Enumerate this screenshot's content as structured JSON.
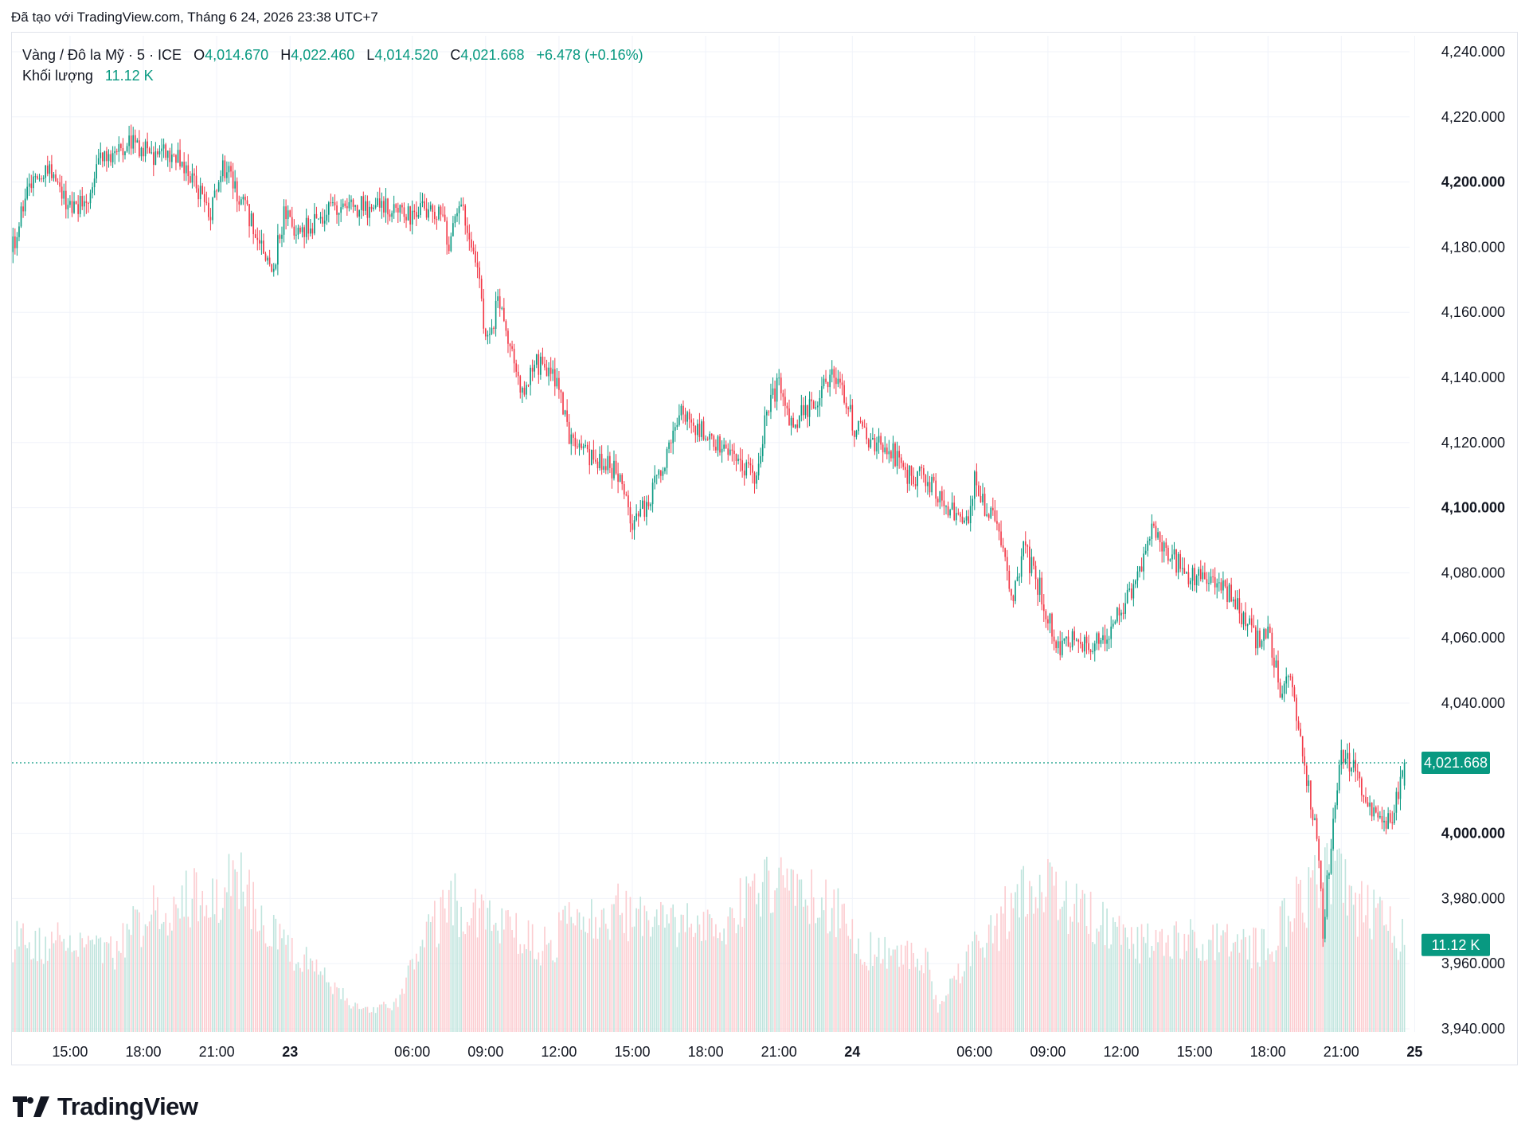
{
  "caption": "Đã tạo với TradingView.com, Tháng 6 24, 2026 23:38 UTC+7",
  "legend": {
    "symbol": "Vàng / Đô la Mỹ · 5 · ICE",
    "open_label": "O",
    "open": "4,014.670",
    "high_label": "H",
    "high": "4,022.460",
    "low_label": "L",
    "low": "4,014.520",
    "close_label": "C",
    "close": "4,021.668",
    "change": "+6.478 (+0.16%)",
    "volume_label": "Khối lượng",
    "volume": "11.12 K"
  },
  "brand": {
    "name": "TradingView",
    "logo_icon": "tradingview-logo-icon"
  },
  "colors": {
    "up": "#089981",
    "down": "#f23645",
    "up_volume": "#bfe4dd",
    "down_volume": "#fcccd0",
    "grid": "#f0f3fa",
    "text": "#131722"
  },
  "chart_data": {
    "type": "candlestick",
    "interval_minutes": 5,
    "ylim": [
      3940,
      4240
    ],
    "y_ticks": [
      {
        "value": 4240,
        "label": "4,240.000",
        "bold": false
      },
      {
        "value": 4220,
        "label": "4,220.000",
        "bold": false
      },
      {
        "value": 4200,
        "label": "4,200.000",
        "bold": true
      },
      {
        "value": 4180,
        "label": "4,180.000",
        "bold": false
      },
      {
        "value": 4160,
        "label": "4,160.000",
        "bold": false
      },
      {
        "value": 4140,
        "label": "4,140.000",
        "bold": false
      },
      {
        "value": 4120,
        "label": "4,120.000",
        "bold": false
      },
      {
        "value": 4100,
        "label": "4,100.000",
        "bold": true
      },
      {
        "value": 4080,
        "label": "4,080.000",
        "bold": false
      },
      {
        "value": 4060,
        "label": "4,060.000",
        "bold": false
      },
      {
        "value": 4040,
        "label": "4,040.000",
        "bold": false
      },
      {
        "value": 4000,
        "label": "4,000.000",
        "bold": true
      },
      {
        "value": 3980,
        "label": "3,980.000",
        "bold": false
      },
      {
        "value": 3960,
        "label": "3,960.000",
        "bold": false
      },
      {
        "value": 3940,
        "label": "3,940.000",
        "bold": false
      }
    ],
    "x_ticks": [
      {
        "time": "22 15:00",
        "label": "15:00",
        "bold": false
      },
      {
        "time": "22 18:00",
        "label": "18:00",
        "bold": false
      },
      {
        "time": "22 21:00",
        "label": "21:00",
        "bold": false
      },
      {
        "time": "23 00:00",
        "label": "23",
        "bold": true
      },
      {
        "time": "23 06:00",
        "label": "06:00",
        "bold": false
      },
      {
        "time": "23 09:00",
        "label": "09:00",
        "bold": false
      },
      {
        "time": "23 12:00",
        "label": "12:00",
        "bold": false
      },
      {
        "time": "23 15:00",
        "label": "15:00",
        "bold": false
      },
      {
        "time": "23 18:00",
        "label": "18:00",
        "bold": false
      },
      {
        "time": "23 21:00",
        "label": "21:00",
        "bold": false
      },
      {
        "time": "24 00:00",
        "label": "24",
        "bold": true
      },
      {
        "time": "24 06:00",
        "label": "06:00",
        "bold": false
      },
      {
        "time": "24 09:00",
        "label": "09:00",
        "bold": false
      },
      {
        "time": "24 12:00",
        "label": "12:00",
        "bold": false
      },
      {
        "time": "24 15:00",
        "label": "15:00",
        "bold": false
      },
      {
        "time": "24 18:00",
        "label": "18:00",
        "bold": false
      },
      {
        "time": "24 21:00",
        "label": "21:00",
        "bold": false
      },
      {
        "time": "25 00:00",
        "label": "25",
        "bold": true
      }
    ],
    "start_time": "22 12:40",
    "end_time": "24 23:35",
    "session_gaps": [
      [
        "23 00:00",
        "23 01:00"
      ],
      [
        "24 00:00",
        "24 01:00"
      ]
    ],
    "close_path": [
      [
        "22 12:40",
        4180
      ],
      [
        "22 13:10",
        4195
      ],
      [
        "22 14:00",
        4205
      ],
      [
        "22 14:40",
        4195
      ],
      [
        "22 15:30",
        4192
      ],
      [
        "22 16:00",
        4200
      ],
      [
        "22 16:15",
        4208
      ],
      [
        "22 17:30",
        4212
      ],
      [
        "22 18:30",
        4207
      ],
      [
        "22 19:00",
        4210
      ],
      [
        "22 19:45",
        4205
      ],
      [
        "22 20:45",
        4190
      ],
      [
        "22 21:15",
        4205
      ],
      [
        "22 22:00",
        4195
      ],
      [
        "22 22:45",
        4182
      ],
      [
        "22 23:15",
        4172
      ],
      [
        "22 23:45",
        4190
      ],
      [
        "23 01:30",
        4185
      ],
      [
        "23 03:00",
        4193
      ],
      [
        "23 04:30",
        4192
      ],
      [
        "23 06:00",
        4190
      ],
      [
        "23 07:00",
        4192
      ],
      [
        "23 07:30",
        4182
      ],
      [
        "23 08:00",
        4195
      ],
      [
        "23 08:40",
        4175
      ],
      [
        "23 09:00",
        4150
      ],
      [
        "23 09:30",
        4162
      ],
      [
        "23 10:00",
        4150
      ],
      [
        "23 10:30",
        4135
      ],
      [
        "23 11:00",
        4145
      ],
      [
        "23 12:00",
        4138
      ],
      [
        "23 12:30",
        4120
      ],
      [
        "23 13:30",
        4115
      ],
      [
        "23 14:30",
        4110
      ],
      [
        "23 15:00",
        4093
      ],
      [
        "23 16:00",
        4108
      ],
      [
        "23 17:00",
        4130
      ],
      [
        "23 18:00",
        4122
      ],
      [
        "23 19:00",
        4118
      ],
      [
        "23 20:00",
        4110
      ],
      [
        "23 20:30",
        4128
      ],
      [
        "23 21:00",
        4140
      ],
      [
        "23 21:30",
        4125
      ],
      [
        "23 22:30",
        4133
      ],
      [
        "23 23:15",
        4140
      ],
      [
        "23 23:45",
        4132
      ],
      [
        "24 01:30",
        4122
      ],
      [
        "24 02:30",
        4118
      ],
      [
        "24 03:30",
        4108
      ],
      [
        "24 04:00",
        4110
      ],
      [
        "24 04:45",
        4100
      ],
      [
        "24 05:45",
        4095
      ],
      [
        "24 06:00",
        4110
      ],
      [
        "24 06:30",
        4098
      ],
      [
        "24 07:00",
        4095
      ],
      [
        "24 07:30",
        4070
      ],
      [
        "24 08:00",
        4088
      ],
      [
        "24 08:40",
        4075
      ],
      [
        "24 09:30",
        4055
      ],
      [
        "24 10:00",
        4060
      ],
      [
        "24 11:00",
        4058
      ],
      [
        "24 12:00",
        4068
      ],
      [
        "24 12:45",
        4080
      ],
      [
        "24 13:15",
        4092
      ],
      [
        "24 14:00",
        4085
      ],
      [
        "24 15:00",
        4078
      ],
      [
        "24 16:00",
        4078
      ],
      [
        "24 16:30",
        4072
      ],
      [
        "24 17:30",
        4060
      ],
      [
        "24 18:00",
        4062
      ],
      [
        "24 18:30",
        4045
      ],
      [
        "24 19:00",
        4045
      ],
      [
        "24 19:30",
        4020
      ],
      [
        "24 20:00",
        4000
      ],
      [
        "24 20:15",
        3970
      ],
      [
        "24 20:40",
        4005
      ],
      [
        "24 21:00",
        4025
      ],
      [
        "24 21:30",
        4020
      ],
      [
        "24 22:00",
        4008
      ],
      [
        "24 22:30",
        4005
      ],
      [
        "24 23:00",
        4003
      ],
      [
        "24 23:35",
        4021.668
      ]
    ],
    "last_price": 4021.668,
    "last_price_label": "4,021.668",
    "last_volume_label": "11.12 K",
    "volume_scale_max_k": 28,
    "volume_path_k": [
      [
        "22 12:40",
        12
      ],
      [
        "22 17:00",
        11
      ],
      [
        "22 18:00",
        15
      ],
      [
        "22 20:30",
        18
      ],
      [
        "22 22:00",
        19
      ],
      [
        "22 23:45",
        12
      ],
      [
        "23 01:30",
        10
      ],
      [
        "23 03:00",
        5
      ],
      [
        "23 04:00",
        3
      ],
      [
        "23 05:30",
        4
      ],
      [
        "23 06:00",
        9
      ],
      [
        "23 07:30",
        17
      ],
      [
        "23 09:30",
        14
      ],
      [
        "23 10:30",
        12
      ],
      [
        "23 11:30",
        11
      ],
      [
        "23 13:00",
        17
      ],
      [
        "23 15:00",
        15
      ],
      [
        "23 18:00",
        13
      ],
      [
        "23 21:00",
        20
      ],
      [
        "23 22:00",
        18
      ],
      [
        "24 01:30",
        11
      ],
      [
        "24 04:00",
        10
      ],
      [
        "24 04:30",
        3
      ],
      [
        "24 05:30",
        9
      ],
      [
        "24 07:00",
        14
      ],
      [
        "24 08:00",
        20
      ],
      [
        "24 10:00",
        17
      ],
      [
        "24 12:00",
        12
      ],
      [
        "24 15:00",
        12
      ],
      [
        "24 18:00",
        11
      ],
      [
        "24 19:00",
        16
      ],
      [
        "24 20:30",
        21
      ],
      [
        "24 21:30",
        17
      ],
      [
        "24 23:35",
        12
      ]
    ]
  }
}
